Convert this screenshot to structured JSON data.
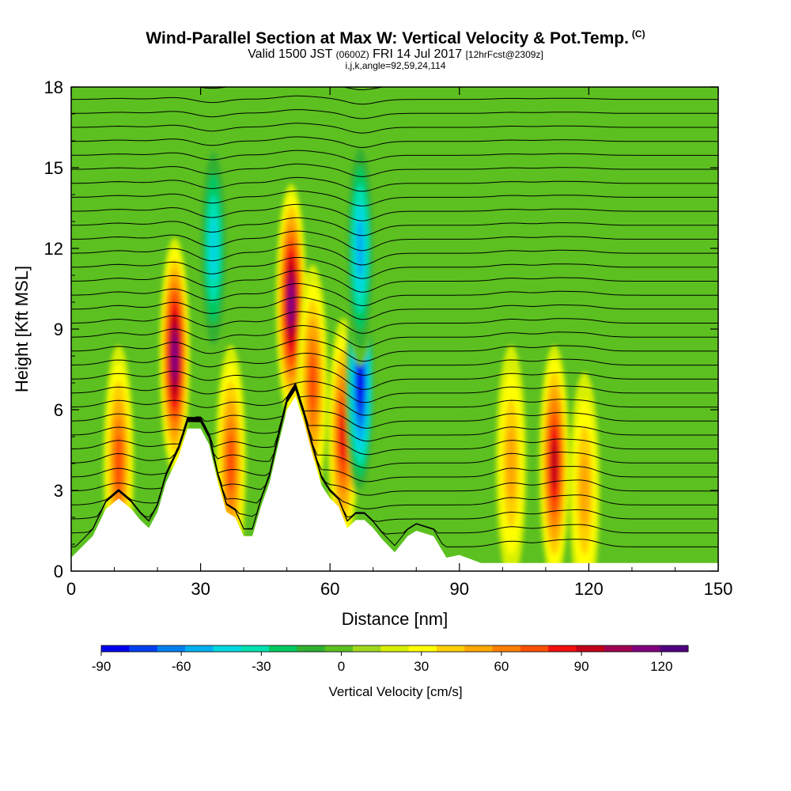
{
  "header": {
    "title": "Wind-Parallel Section at Max W: Vertical Velocity & Pot.Temp.",
    "copyright": "(C)",
    "valid_prefix": "Valid 1500 JST",
    "valid_utc": "(0600Z)",
    "valid_date": "FRI 14 Jul 2017",
    "forecast": "[12hrFcst@2309z]",
    "indices": "i,j,k,angle=92,59,24,114"
  },
  "chart_data": {
    "type": "heatmap",
    "xlabel": "Distance [nm]",
    "ylabel": "Height [Kft MSL]",
    "xlim": [
      0,
      150
    ],
    "ylim": [
      0,
      18
    ],
    "x_ticks": [
      0,
      30,
      60,
      90,
      120,
      150
    ],
    "y_ticks": [
      0,
      3,
      6,
      9,
      12,
      15,
      18
    ],
    "colorbar": {
      "label": "Vertical Velocity [cm/s]",
      "min": -90,
      "max": 130,
      "step": 10,
      "tick_values": [
        -90,
        -60,
        -30,
        0,
        30,
        60,
        90,
        120
      ],
      "colors": [
        "#0000ee",
        "#0040f0",
        "#0080f0",
        "#00b0f0",
        "#00d8e0",
        "#00e0b0",
        "#00c860",
        "#30b030",
        "#5cc020",
        "#a0d820",
        "#d8f000",
        "#ffff00",
        "#ffd000",
        "#ffa800",
        "#ff8000",
        "#ff5000",
        "#f01010",
        "#c00018",
        "#a00050",
        "#800080",
        "#500080"
      ]
    },
    "terrain_kft": [
      [
        0,
        0.5
      ],
      [
        5,
        1.3
      ],
      [
        8,
        2.3
      ],
      [
        11,
        2.7
      ],
      [
        14,
        2.3
      ],
      [
        16,
        1.9
      ],
      [
        18,
        1.6
      ],
      [
        20,
        2.2
      ],
      [
        22,
        3.3
      ],
      [
        25,
        4.3
      ],
      [
        27,
        5.3
      ],
      [
        30,
        5.3
      ],
      [
        32,
        4.7
      ],
      [
        34,
        3.3
      ],
      [
        36,
        2.2
      ],
      [
        38,
        2.0
      ],
      [
        40,
        1.3
      ],
      [
        42,
        1.3
      ],
      [
        44,
        2.4
      ],
      [
        46,
        3.3
      ],
      [
        48,
        4.7
      ],
      [
        50,
        6.0
      ],
      [
        52,
        6.5
      ],
      [
        54,
        5.5
      ],
      [
        56,
        4.3
      ],
      [
        58,
        3.2
      ],
      [
        60,
        2.7
      ],
      [
        62,
        2.4
      ],
      [
        64,
        1.6
      ],
      [
        66,
        1.9
      ],
      [
        68,
        1.9
      ],
      [
        70,
        1.6
      ],
      [
        72,
        1.2
      ],
      [
        75,
        0.7
      ],
      [
        78,
        1.3
      ],
      [
        80,
        1.5
      ],
      [
        84,
        1.3
      ],
      [
        87,
        0.5
      ],
      [
        90,
        0.6
      ],
      [
        95,
        0.3
      ],
      [
        150,
        0.3
      ]
    ],
    "velocity_features": [
      {
        "x": 11,
        "z": 4,
        "w": 55
      },
      {
        "x": 24,
        "z": 8,
        "w": 100
      },
      {
        "x": 33,
        "z": 12,
        "w": -50
      },
      {
        "x": 37,
        "z": 4,
        "w": 60
      },
      {
        "x": 51,
        "z": 10,
        "w": 95
      },
      {
        "x": 56,
        "z": 7,
        "w": 60
      },
      {
        "x": 63,
        "z": 5,
        "w": 70
      },
      {
        "x": 67,
        "z": 7,
        "w": -85
      },
      {
        "x": 67,
        "z": 12,
        "w": -55
      },
      {
        "x": 102,
        "z": 4,
        "w": 40
      },
      {
        "x": 112,
        "z": 4,
        "w": 80
      },
      {
        "x": 119,
        "z": 3,
        "w": 40
      }
    ]
  }
}
